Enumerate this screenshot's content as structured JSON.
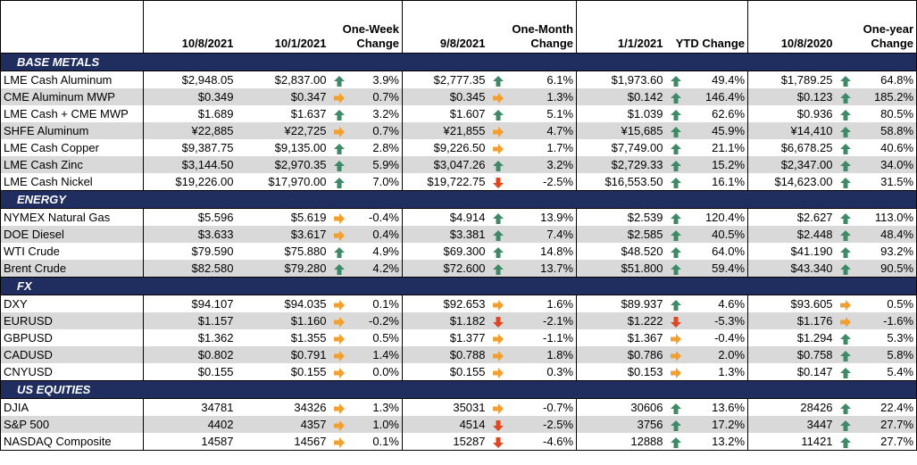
{
  "colors": {
    "section_bg": "#1f2e5f",
    "alt_row_bg": "#d9d9d9",
    "arrow_up": "#3e8a66",
    "arrow_down": "#e0461f",
    "arrow_right": "#f0a030"
  },
  "headers": {
    "current": "10/8/2021",
    "week_ago": "10/1/2021",
    "week_change": "One-Week Change",
    "month_ago": "9/8/2021",
    "month_change": "One-Month Change",
    "ytd_base": "1/1/2021",
    "ytd_change": "YTD Change",
    "year_ago": "10/8/2020",
    "year_change": "One-year Change"
  },
  "sections": [
    {
      "title": "BASE METALS",
      "rows": [
        {
          "name": "LME Cash Aluminum",
          "current": "$2,948.05",
          "week_ago": "$2,837.00",
          "week_icon": "up-arrow-icon",
          "week_chg": "3.9%",
          "month_ago": "$2,777.35",
          "month_icon": "up-arrow-icon",
          "month_chg": "6.1%",
          "ytd_base": "$1,973.60",
          "ytd_icon": "up-arrow-icon",
          "ytd_chg": "49.4%",
          "year_ago": "$1,789.25",
          "year_icon": "up-arrow-icon",
          "year_chg": "64.8%"
        },
        {
          "name": "CME Aluminum MWP",
          "current": "$0.349",
          "week_ago": "$0.347",
          "week_icon": "right-arrow-icon",
          "week_chg": "0.7%",
          "month_ago": "$0.345",
          "month_icon": "right-arrow-icon",
          "month_chg": "1.3%",
          "ytd_base": "$0.142",
          "ytd_icon": "up-arrow-icon",
          "ytd_chg": "146.4%",
          "year_ago": "$0.123",
          "year_icon": "up-arrow-icon",
          "year_chg": "185.2%"
        },
        {
          "name": "LME Cash + CME MWP",
          "current": "$1.689",
          "week_ago": "$1.637",
          "week_icon": "up-arrow-icon",
          "week_chg": "3.2%",
          "month_ago": "$1.607",
          "month_icon": "up-arrow-icon",
          "month_chg": "5.1%",
          "ytd_base": "$1.039",
          "ytd_icon": "up-arrow-icon",
          "ytd_chg": "62.6%",
          "year_ago": "$0.936",
          "year_icon": "up-arrow-icon",
          "year_chg": "80.5%"
        },
        {
          "name": "SHFE Aluminum",
          "current": "¥22,885",
          "week_ago": "¥22,725",
          "week_icon": "right-arrow-icon",
          "week_chg": "0.7%",
          "month_ago": "¥21,855",
          "month_icon": "right-arrow-icon",
          "month_chg": "4.7%",
          "ytd_base": "¥15,685",
          "ytd_icon": "up-arrow-icon",
          "ytd_chg": "45.9%",
          "year_ago": "¥14,410",
          "year_icon": "up-arrow-icon",
          "year_chg": "58.8%"
        },
        {
          "name": "LME Cash Copper",
          "current": "$9,387.75",
          "week_ago": "$9,135.00",
          "week_icon": "up-arrow-icon",
          "week_chg": "2.8%",
          "month_ago": "$9,226.50",
          "month_icon": "right-arrow-icon",
          "month_chg": "1.7%",
          "ytd_base": "$7,749.00",
          "ytd_icon": "up-arrow-icon",
          "ytd_chg": "21.1%",
          "year_ago": "$6,678.25",
          "year_icon": "up-arrow-icon",
          "year_chg": "40.6%"
        },
        {
          "name": "LME Cash Zinc",
          "current": "$3,144.50",
          "week_ago": "$2,970.35",
          "week_icon": "up-arrow-icon",
          "week_chg": "5.9%",
          "month_ago": "$3,047.26",
          "month_icon": "up-arrow-icon",
          "month_chg": "3.2%",
          "ytd_base": "$2,729.33",
          "ytd_icon": "up-arrow-icon",
          "ytd_chg": "15.2%",
          "year_ago": "$2,347.00",
          "year_icon": "up-arrow-icon",
          "year_chg": "34.0%"
        },
        {
          "name": "LME Cash Nickel",
          "current": "$19,226.00",
          "week_ago": "$17,970.00",
          "week_icon": "up-arrow-icon",
          "week_chg": "7.0%",
          "month_ago": "$19,722.75",
          "month_icon": "down-arrow-icon",
          "month_chg": "-2.5%",
          "ytd_base": "$16,553.50",
          "ytd_icon": "up-arrow-icon",
          "ytd_chg": "16.1%",
          "year_ago": "$14,623.00",
          "year_icon": "up-arrow-icon",
          "year_chg": "31.5%"
        }
      ]
    },
    {
      "title": "ENERGY",
      "rows": [
        {
          "name": "NYMEX Natural Gas",
          "current": "$5.596",
          "week_ago": "$5.619",
          "week_icon": "right-arrow-icon",
          "week_chg": "-0.4%",
          "month_ago": "$4.914",
          "month_icon": "up-arrow-icon",
          "month_chg": "13.9%",
          "ytd_base": "$2.539",
          "ytd_icon": "up-arrow-icon",
          "ytd_chg": "120.4%",
          "year_ago": "$2.627",
          "year_icon": "up-arrow-icon",
          "year_chg": "113.0%"
        },
        {
          "name": "DOE Diesel",
          "current": "$3.633",
          "week_ago": "$3.617",
          "week_icon": "right-arrow-icon",
          "week_chg": "0.4%",
          "month_ago": "$3.381",
          "month_icon": "up-arrow-icon",
          "month_chg": "7.4%",
          "ytd_base": "$2.585",
          "ytd_icon": "up-arrow-icon",
          "ytd_chg": "40.5%",
          "year_ago": "$2.448",
          "year_icon": "up-arrow-icon",
          "year_chg": "48.4%"
        },
        {
          "name": "WTI Crude",
          "current": "$79.590",
          "week_ago": "$75.880",
          "week_icon": "up-arrow-icon",
          "week_chg": "4.9%",
          "month_ago": "$69.300",
          "month_icon": "up-arrow-icon",
          "month_chg": "14.8%",
          "ytd_base": "$48.520",
          "ytd_icon": "up-arrow-icon",
          "ytd_chg": "64.0%",
          "year_ago": "$41.190",
          "year_icon": "up-arrow-icon",
          "year_chg": "93.2%"
        },
        {
          "name": "Brent Crude",
          "current": "$82.580",
          "week_ago": "$79.280",
          "week_icon": "up-arrow-icon",
          "week_chg": "4.2%",
          "month_ago": "$72.600",
          "month_icon": "up-arrow-icon",
          "month_chg": "13.7%",
          "ytd_base": "$51.800",
          "ytd_icon": "up-arrow-icon",
          "ytd_chg": "59.4%",
          "year_ago": "$43.340",
          "year_icon": "up-arrow-icon",
          "year_chg": "90.5%"
        }
      ]
    },
    {
      "title": "FX",
      "rows": [
        {
          "name": "DXY",
          "current": "$94.107",
          "week_ago": "$94.035",
          "week_icon": "right-arrow-icon",
          "week_chg": "0.1%",
          "month_ago": "$92.653",
          "month_icon": "right-arrow-icon",
          "month_chg": "1.6%",
          "ytd_base": "$89.937",
          "ytd_icon": "up-arrow-icon",
          "ytd_chg": "4.6%",
          "year_ago": "$93.605",
          "year_icon": "right-arrow-icon",
          "year_chg": "0.5%"
        },
        {
          "name": "EURUSD",
          "current": "$1.157",
          "week_ago": "$1.160",
          "week_icon": "right-arrow-icon",
          "week_chg": "-0.2%",
          "month_ago": "$1.182",
          "month_icon": "down-arrow-icon",
          "month_chg": "-2.1%",
          "ytd_base": "$1.222",
          "ytd_icon": "down-arrow-icon",
          "ytd_chg": "-5.3%",
          "year_ago": "$1.176",
          "year_icon": "right-arrow-icon",
          "year_chg": "-1.6%"
        },
        {
          "name": "GBPUSD",
          "current": "$1.362",
          "week_ago": "$1.355",
          "week_icon": "right-arrow-icon",
          "week_chg": "0.5%",
          "month_ago": "$1.377",
          "month_icon": "right-arrow-icon",
          "month_chg": "-1.1%",
          "ytd_base": "$1.367",
          "ytd_icon": "right-arrow-icon",
          "ytd_chg": "-0.4%",
          "year_ago": "$1.294",
          "year_icon": "up-arrow-icon",
          "year_chg": "5.3%"
        },
        {
          "name": "CADUSD",
          "current": "$0.802",
          "week_ago": "$0.791",
          "week_icon": "right-arrow-icon",
          "week_chg": "1.4%",
          "month_ago": "$0.788",
          "month_icon": "right-arrow-icon",
          "month_chg": "1.8%",
          "ytd_base": "$0.786",
          "ytd_icon": "right-arrow-icon",
          "ytd_chg": "2.0%",
          "year_ago": "$0.758",
          "year_icon": "up-arrow-icon",
          "year_chg": "5.8%"
        },
        {
          "name": "CNYUSD",
          "current": "$0.155",
          "week_ago": "$0.155",
          "week_icon": "right-arrow-icon",
          "week_chg": "0.0%",
          "month_ago": "$0.155",
          "month_icon": "right-arrow-icon",
          "month_chg": "0.3%",
          "ytd_base": "$0.153",
          "ytd_icon": "right-arrow-icon",
          "ytd_chg": "1.3%",
          "year_ago": "$0.147",
          "year_icon": "up-arrow-icon",
          "year_chg": "5.4%"
        }
      ]
    },
    {
      "title": "US EQUITIES",
      "rows": [
        {
          "name": "DJIA",
          "current": "34781",
          "week_ago": "34326",
          "week_icon": "right-arrow-icon",
          "week_chg": "1.3%",
          "month_ago": "35031",
          "month_icon": "right-arrow-icon",
          "month_chg": "-0.7%",
          "ytd_base": "30606",
          "ytd_icon": "up-arrow-icon",
          "ytd_chg": "13.6%",
          "year_ago": "28426",
          "year_icon": "up-arrow-icon",
          "year_chg": "22.4%"
        },
        {
          "name": "S&P 500",
          "current": "4402",
          "week_ago": "4357",
          "week_icon": "right-arrow-icon",
          "week_chg": "1.0%",
          "month_ago": "4514",
          "month_icon": "down-arrow-icon",
          "month_chg": "-2.5%",
          "ytd_base": "3756",
          "ytd_icon": "up-arrow-icon",
          "ytd_chg": "17.2%",
          "year_ago": "3447",
          "year_icon": "up-arrow-icon",
          "year_chg": "27.7%"
        },
        {
          "name": "NASDAQ Composite",
          "current": "14587",
          "week_ago": "14567",
          "week_icon": "right-arrow-icon",
          "week_chg": "0.1%",
          "month_ago": "15287",
          "month_icon": "down-arrow-icon",
          "month_chg": "-4.6%",
          "ytd_base": "12888",
          "ytd_icon": "up-arrow-icon",
          "ytd_chg": "13.2%",
          "year_ago": "11421",
          "year_icon": "up-arrow-icon",
          "year_chg": "27.7%"
        }
      ]
    }
  ]
}
